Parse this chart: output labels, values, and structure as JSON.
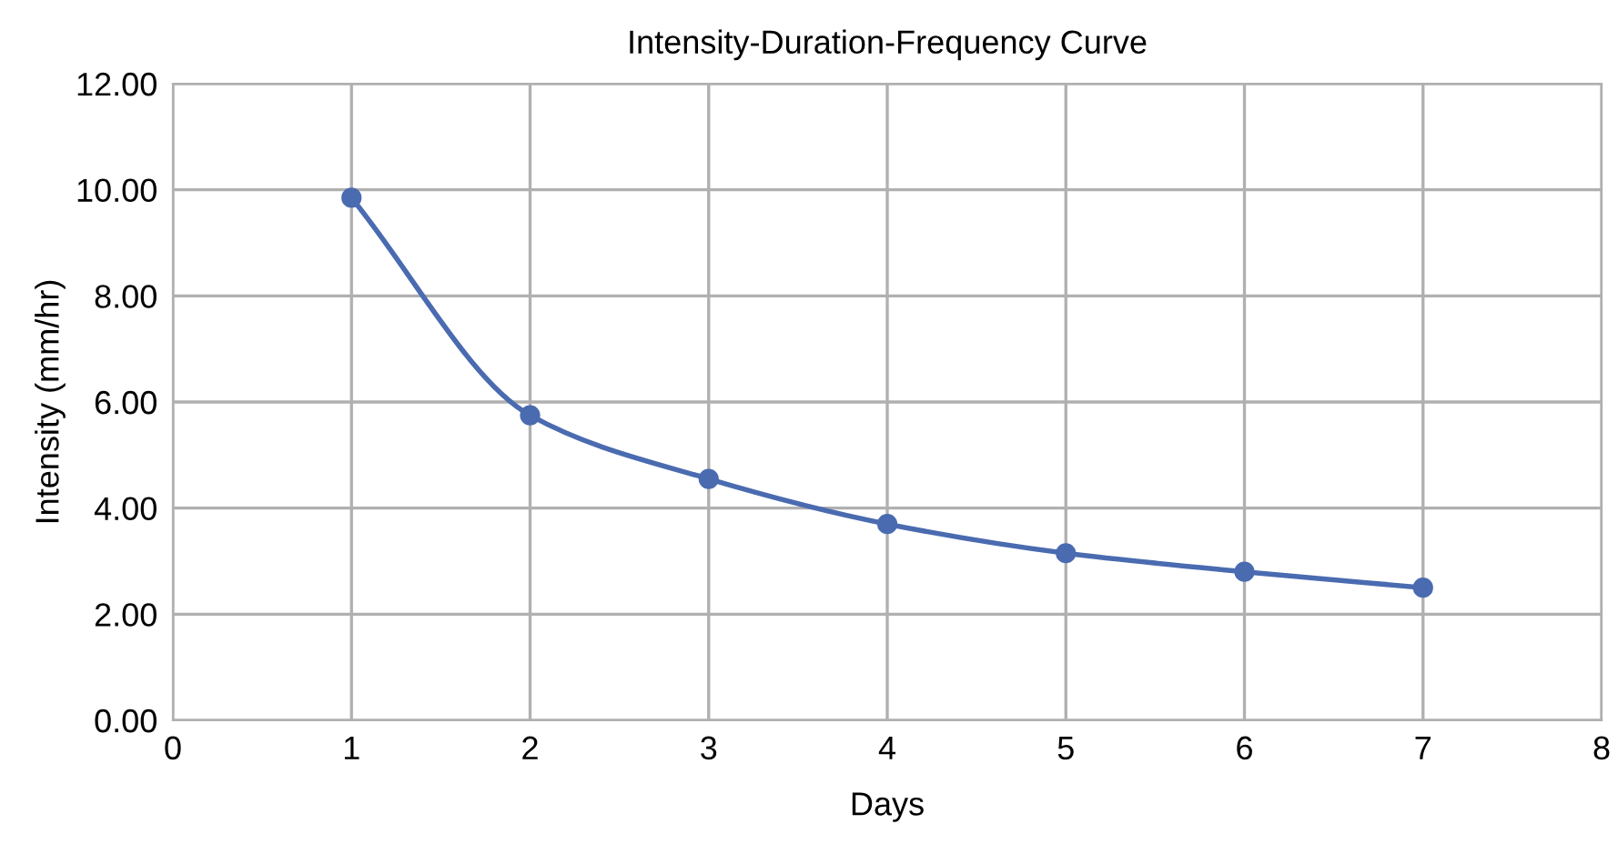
{
  "chart_data": {
    "type": "line",
    "title": "Intensity-Duration-Frequency Curve",
    "xlabel": "Days",
    "ylabel": "Intensity (mm/hr)",
    "x": [
      1,
      2,
      3,
      4,
      5,
      6,
      7
    ],
    "series": [
      {
        "color": "#4a6bb0",
        "values": [
          9.85,
          5.75,
          4.55,
          3.7,
          3.15,
          2.8,
          2.5
        ]
      }
    ],
    "xlim": [
      0,
      8
    ],
    "xticks": [
      0,
      1,
      2,
      3,
      4,
      5,
      6,
      7,
      8
    ],
    "ylim": [
      0,
      12
    ],
    "yticks": [
      {
        "value": 0,
        "label": "0.00"
      },
      {
        "value": 2,
        "label": "2.00"
      },
      {
        "value": 4,
        "label": "4.00"
      },
      {
        "value": 6,
        "label": "6.00"
      },
      {
        "value": 8,
        "label": "8.00"
      },
      {
        "value": 10,
        "label": "10.00"
      },
      {
        "value": 12,
        "label": "12.00"
      }
    ],
    "grid": true,
    "marker": "circle",
    "line_style": "solid"
  }
}
